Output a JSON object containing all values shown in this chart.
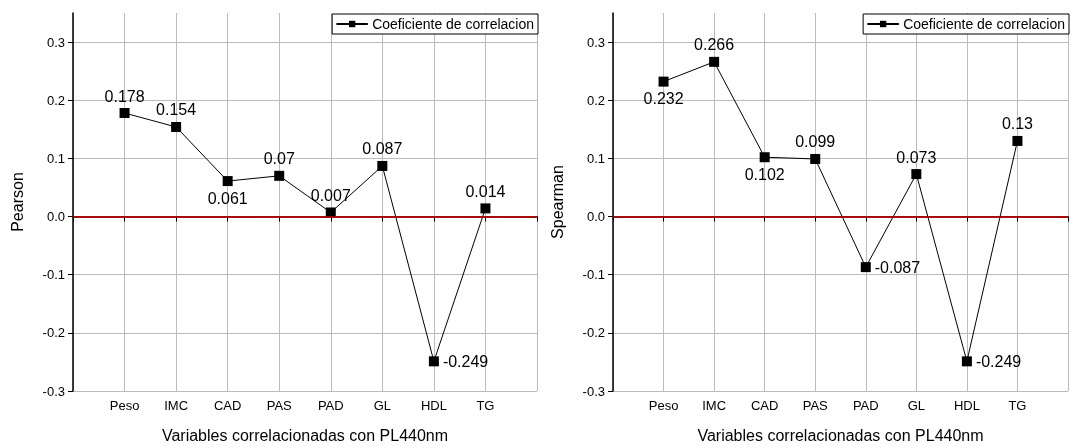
{
  "chart_data": [
    {
      "type": "line",
      "xlabel": "Variables correlacionadas con PL440nm",
      "ylabel": "Pearson",
      "categories": [
        null,
        "Peso",
        "IMC",
        "CAD",
        "PAS",
        "PAD",
        "GL",
        "HDL",
        "TG",
        null
      ],
      "series": [
        {
          "name": "Coeficiente de correlacion",
          "color": "#000000",
          "values": [
            null,
            0.178,
            0.154,
            0.061,
            0.07,
            0.007,
            0.087,
            -0.249,
            0.014,
            null
          ]
        }
      ],
      "ylim": [
        -0.3,
        0.35
      ],
      "yticks": [
        -0.3,
        -0.2,
        -0.1,
        {
          "value": 0,
          "label": "0.0"
        },
        0.1,
        0.2,
        0.3
      ],
      "ref_lines": [
        {
          "axis": "y",
          "value": 0,
          "label": null,
          "color": "#cc0000"
        }
      ],
      "grid": true,
      "legend": "top right",
      "marker": "square",
      "line_style": "solid",
      "data_labels": true
    },
    {
      "type": "line",
      "xlabel": "Variables correlacionadas con PL440nm",
      "ylabel": "Spearman",
      "categories": [
        null,
        "Peso",
        "IMC",
        "CAD",
        "PAS",
        "PAD",
        "GL",
        "HDL",
        "TG",
        null
      ],
      "series": [
        {
          "name": "Coeficiente de correlacion",
          "color": "#000000",
          "values": [
            null,
            0.232,
            0.266,
            0.102,
            0.099,
            -0.087,
            0.073,
            -0.249,
            0.13,
            null
          ]
        }
      ],
      "ylim": [
        -0.3,
        0.35
      ],
      "yticks": [
        -0.3,
        -0.2,
        -0.1,
        {
          "value": 0,
          "label": "0.0"
        },
        0.1,
        0.2,
        0.3
      ],
      "ref_lines": [
        {
          "axis": "y",
          "value": 0,
          "label": null,
          "color": "#cc0000"
        }
      ],
      "grid": true,
      "legend": "top right",
      "marker": "square",
      "line_style": "solid",
      "data_labels": true
    }
  ]
}
